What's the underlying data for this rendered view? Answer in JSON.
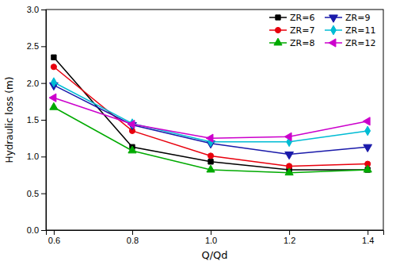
{
  "chart_data": {
    "type": "line",
    "x": [
      0.6,
      0.8,
      1.0,
      1.2,
      1.4
    ],
    "series": [
      {
        "name": "ZR=6",
        "color": "#000000",
        "marker": "square",
        "values": [
          2.35,
          1.13,
          0.93,
          0.82,
          0.82
        ]
      },
      {
        "name": "ZR=7",
        "color": "#e8000d",
        "marker": "circle",
        "values": [
          2.22,
          1.35,
          1.01,
          0.87,
          0.9
        ]
      },
      {
        "name": "ZR=8",
        "color": "#00aa00",
        "marker": "triangle-up",
        "values": [
          1.67,
          1.08,
          0.82,
          0.78,
          0.82
        ]
      },
      {
        "name": "ZR=9",
        "color": "#1a1aaa",
        "marker": "triangle-down",
        "values": [
          1.97,
          1.43,
          1.18,
          1.03,
          1.13
        ]
      },
      {
        "name": "ZR=11",
        "color": "#00bcd4",
        "marker": "diamond",
        "values": [
          2.01,
          1.45,
          1.2,
          1.2,
          1.35
        ]
      },
      {
        "name": "ZR=12",
        "color": "#cc00cc",
        "marker": "triangle-left",
        "values": [
          1.8,
          1.44,
          1.25,
          1.27,
          1.48
        ]
      }
    ],
    "x_label": "Q/Qd",
    "y_label": "Hydraulic loss (m)",
    "xlim": [
      0.58,
      1.44
    ],
    "ylim": [
      0.0,
      3.0
    ],
    "xticks": [
      0.6,
      0.8,
      {
        "value": 1.0,
        "label": "1.0"
      },
      1.2,
      1.4
    ],
    "yticks": [
      {
        "value": 0.0,
        "label": "0.0"
      },
      0.5,
      {
        "value": 1.0,
        "label": "1.0"
      },
      1.5,
      {
        "value": 2.0,
        "label": "2.0"
      },
      2.5,
      {
        "value": 3.0,
        "label": "3.0"
      }
    ],
    "legend": "upper right",
    "grid": false
  }
}
